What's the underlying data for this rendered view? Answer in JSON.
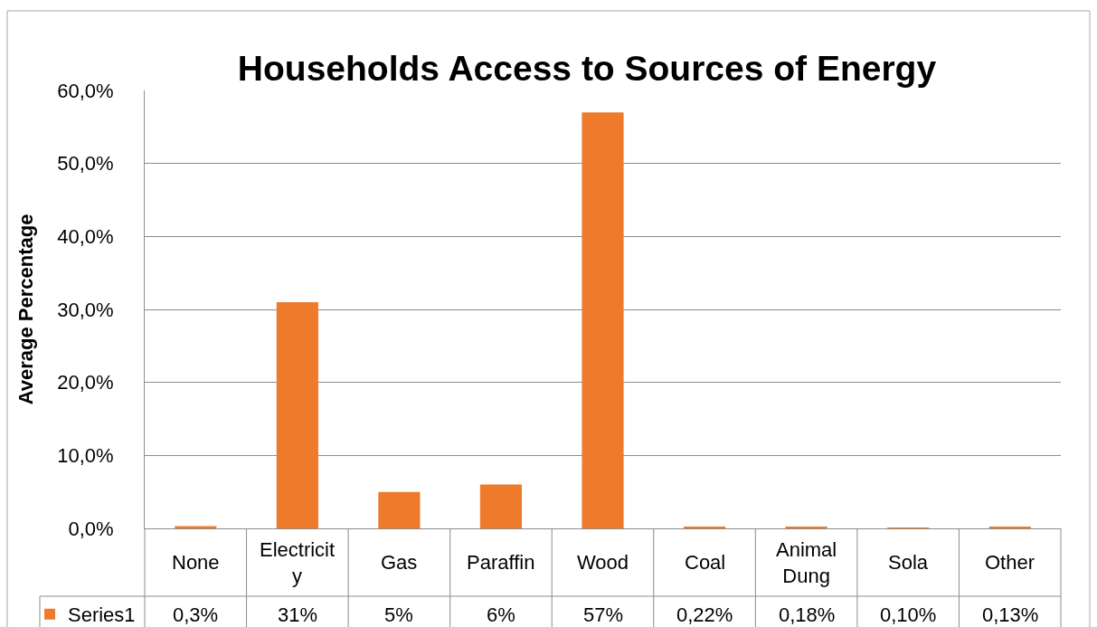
{
  "chart_data": {
    "type": "bar",
    "title": "Households Access to Sources of Energy",
    "ylabel": "Average Percentage",
    "categories": [
      "None",
      "Electricity",
      "Gas",
      "Paraffin",
      "Wood",
      "Coal",
      "Animal Dung",
      "Sola",
      "Other"
    ],
    "series": [
      {
        "name": "Series1",
        "color": "#ee7a2c",
        "values": [
          0.3,
          31,
          5,
          6,
          57,
          0.22,
          0.18,
          0.1,
          0.13
        ],
        "value_labels": [
          "0,3%",
          "31%",
          "5%",
          "6%",
          "57%",
          "0,22%",
          "0,18%",
          "0,10%",
          "0,13%"
        ]
      }
    ],
    "ylim": [
      0,
      60
    ],
    "yticks": [
      {
        "value": 0,
        "label": "0,0%"
      },
      {
        "value": 10,
        "label": "10,0%"
      },
      {
        "value": 20,
        "label": "20,0%"
      },
      {
        "value": 30,
        "label": "30,0%"
      },
      {
        "value": 40,
        "label": "40,0%"
      },
      {
        "value": 50,
        "label": "50,0%"
      },
      {
        "value": 60,
        "label": "60,0%"
      }
    ],
    "grid": "y",
    "legend": "bottom left"
  }
}
